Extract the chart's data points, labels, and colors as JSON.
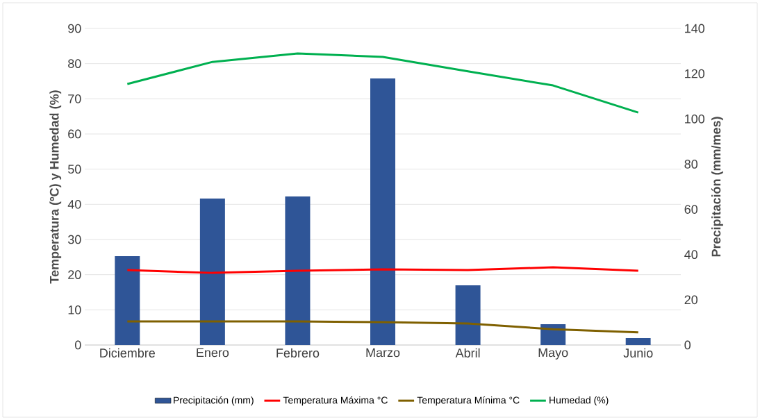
{
  "chart_data": {
    "type": "line",
    "categories": [
      "Diciembre",
      "Enero",
      "Febrero",
      "Marzo",
      "Abril",
      "Mayo",
      "Junio"
    ],
    "ylabel": "Temperatura (ºC) y Humedad (%)",
    "y2label": "Precipitación (mm/mes)",
    "ylim": [
      0,
      90
    ],
    "yticks": [
      0,
      10,
      20,
      30,
      40,
      50,
      60,
      70,
      80,
      90
    ],
    "y2lim": [
      0,
      140
    ],
    "y2ticks": [
      0,
      20,
      40,
      60,
      80,
      100,
      120,
      140
    ],
    "grid": "y",
    "legend": "bottom",
    "marker": "none",
    "series": [
      {
        "name": "Precipitación (mm)",
        "type": "bar",
        "axis": "y2",
        "color": "#2f5597",
        "values": [
          39.3,
          64.8,
          65.7,
          117.9,
          26.4,
          9.2,
          3.1
        ]
      },
      {
        "name": "Temperatura Máxima °C",
        "color": "#ff0000",
        "values": [
          21.3,
          20.5,
          21.1,
          21.5,
          21.3,
          22.1,
          21.1
        ]
      },
      {
        "name": "Temperatura Mínima °C",
        "color": "#7f6000",
        "values": [
          6.7,
          6.7,
          6.7,
          6.5,
          6.1,
          4.5,
          3.6
        ]
      },
      {
        "name": "Humedad (%)",
        "color": "#00b050",
        "values": [
          74.2,
          80.5,
          82.9,
          81.9,
          77.8,
          73.8,
          66.1
        ]
      }
    ]
  }
}
